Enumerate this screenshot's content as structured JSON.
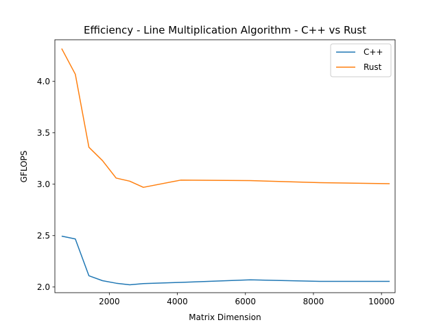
{
  "chart_data": {
    "type": "line",
    "title": "Efficiency - Line Multiplication Algorithm - C++ vs Rust",
    "xlabel": "Matrix Dimension",
    "ylabel": "GFLOPS",
    "xlim": [
      400,
      10400
    ],
    "ylim": [
      1.945,
      4.405
    ],
    "xticks": [
      2000,
      4000,
      6000,
      8000,
      10000
    ],
    "yticks": [
      2.0,
      2.5,
      3.0,
      3.5,
      4.0
    ],
    "grid": false,
    "legend_position": "top-right",
    "series": [
      {
        "name": "C++",
        "color": "#1f77b4",
        "x": [
          600,
          1000,
          1400,
          1800,
          2200,
          2600,
          3000,
          4096,
          6144,
          8192,
          10240
        ],
        "y": [
          2.495,
          2.468,
          2.11,
          2.062,
          2.037,
          2.022,
          2.033,
          2.045,
          2.07,
          2.055,
          2.055
        ]
      },
      {
        "name": "Rust",
        "color": "#ff7f0e",
        "x": [
          600,
          1000,
          1400,
          1800,
          2200,
          2600,
          3000,
          4096,
          6144,
          8192,
          10240
        ],
        "y": [
          4.32,
          4.07,
          3.36,
          3.23,
          3.06,
          3.03,
          2.97,
          3.04,
          3.035,
          3.015,
          3.005
        ]
      }
    ]
  }
}
